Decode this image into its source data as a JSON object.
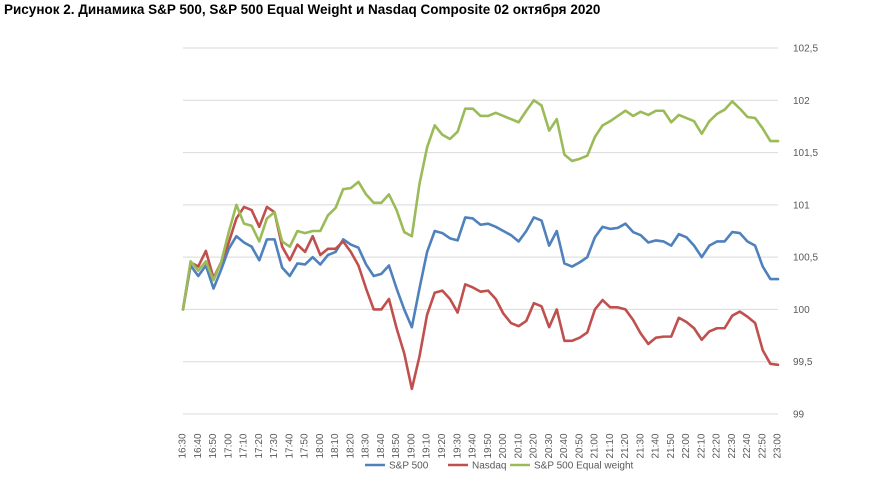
{
  "title": "Рисунок 2. Динамика S&P 500, S&P 500 Equal Weight и Nasdaq Composite 02 октября 2020",
  "chart_data": {
    "type": "line",
    "title": "Рисунок 2. Динамика S&P 500, S&P 500 Equal Weight и Nasdaq Composite 02 октября 2020",
    "xlabel": "",
    "ylabel": "",
    "ylim": [
      99,
      102.5
    ],
    "yticks": [
      "99",
      "99,5",
      "100",
      "100,5",
      "101",
      "101,5",
      "102",
      "102,5"
    ],
    "ytick_values": [
      99,
      99.5,
      100,
      100.5,
      101,
      101.5,
      102,
      102.5
    ],
    "y_axis_side": "right",
    "grid": true,
    "legend_position": "bottom",
    "x": [
      "16:30",
      "16:35",
      "16:40",
      "16:45",
      "16:50",
      "16:55",
      "17:00",
      "17:05",
      "17:10",
      "17:15",
      "17:20",
      "17:25",
      "17:30",
      "17:35",
      "17:40",
      "17:45",
      "17:50",
      "17:55",
      "18:00",
      "18:05",
      "18:10",
      "18:15",
      "18:20",
      "18:25",
      "18:30",
      "18:35",
      "18:40",
      "18:45",
      "18:50",
      "18:55",
      "19:00",
      "19:05",
      "19:10",
      "19:15",
      "19:20",
      "19:25",
      "19:30",
      "19:35",
      "19:40",
      "19:45",
      "19:50",
      "19:55",
      "20:00",
      "20:05",
      "20:10",
      "20:15",
      "20:20",
      "20:25",
      "20:30",
      "20:35",
      "20:40",
      "20:45",
      "20:50",
      "20:55",
      "21:00",
      "21:05",
      "21:10",
      "21:15",
      "21:20",
      "21:25",
      "21:30",
      "21:35",
      "21:40",
      "21:45",
      "21:50",
      "21:55",
      "22:00",
      "22:05",
      "22:10",
      "22:15",
      "22:20",
      "22:25",
      "22:30",
      "22:35",
      "22:40",
      "22:45",
      "22:50",
      "22:55",
      "23:00"
    ],
    "x_tick_labels": [
      "16:30",
      "16:40",
      "16:50",
      "17:00",
      "17:10",
      "17:20",
      "17:30",
      "17:40",
      "17:50",
      "18:00",
      "18:10",
      "18:20",
      "18:30",
      "18:40",
      "18:50",
      "19:00",
      "19:10",
      "19:20",
      "19:30",
      "19:40",
      "19:50",
      "20:00",
      "20:10",
      "20:20",
      "20:30",
      "20:40",
      "20:50",
      "21:00",
      "21:10",
      "21:20",
      "21:30",
      "21:40",
      "21:50",
      "22:00",
      "22:10",
      "22:20",
      "22:30",
      "22:40",
      "22:50",
      "23:00"
    ],
    "series": [
      {
        "name": "S&P 500",
        "color": "#4f81bd",
        "values": [
          100.0,
          100.42,
          100.32,
          100.42,
          100.2,
          100.38,
          100.58,
          100.7,
          100.64,
          100.6,
          100.47,
          100.67,
          100.67,
          100.4,
          100.32,
          100.44,
          100.43,
          100.5,
          100.43,
          100.52,
          100.55,
          100.67,
          100.62,
          100.59,
          100.43,
          100.32,
          100.34,
          100.42,
          100.2,
          100.0,
          99.83,
          100.2,
          100.55,
          100.75,
          100.73,
          100.68,
          100.66,
          100.88,
          100.87,
          100.81,
          100.82,
          100.79,
          100.75,
          100.71,
          100.65,
          100.75,
          100.88,
          100.85,
          100.61,
          100.75,
          100.44,
          100.41,
          100.45,
          100.5,
          100.69,
          100.79,
          100.77,
          100.78,
          100.82,
          100.74,
          100.71,
          100.64,
          100.66,
          100.65,
          100.61,
          100.72,
          100.69,
          100.61,
          100.5,
          100.61,
          100.65,
          100.65,
          100.74,
          100.73,
          100.65,
          100.61,
          100.41,
          100.29,
          100.29
        ]
      },
      {
        "name": "Nasdaq",
        "color": "#c0504d",
        "values": [
          100.0,
          100.45,
          100.41,
          100.56,
          100.3,
          100.45,
          100.64,
          100.87,
          100.98,
          100.95,
          100.79,
          100.98,
          100.93,
          100.6,
          100.47,
          100.62,
          100.55,
          100.7,
          100.52,
          100.58,
          100.58,
          100.65,
          100.55,
          100.42,
          100.2,
          100.0,
          100.0,
          100.1,
          99.82,
          99.58,
          99.24,
          99.55,
          99.95,
          100.16,
          100.18,
          100.1,
          99.97,
          100.24,
          100.21,
          100.17,
          100.18,
          100.1,
          99.96,
          99.87,
          99.84,
          99.89,
          100.06,
          100.03,
          99.83,
          100.0,
          99.7,
          99.7,
          99.73,
          99.78,
          100.0,
          100.09,
          100.02,
          100.02,
          100.0,
          99.9,
          99.77,
          99.67,
          99.73,
          99.74,
          99.74,
          99.92,
          99.88,
          99.82,
          99.71,
          99.79,
          99.82,
          99.82,
          99.94,
          99.98,
          99.93,
          99.87,
          99.61,
          99.48,
          99.47
        ]
      },
      {
        "name": "S&P 500 Equal weight",
        "color": "#9bbb59",
        "values": [
          100.0,
          100.46,
          100.37,
          100.46,
          100.28,
          100.45,
          100.74,
          101.0,
          100.82,
          100.8,
          100.65,
          100.87,
          100.93,
          100.65,
          100.6,
          100.75,
          100.73,
          100.75,
          100.75,
          100.9,
          100.97,
          101.15,
          101.16,
          101.22,
          101.1,
          101.02,
          101.02,
          101.1,
          100.95,
          100.74,
          100.7,
          101.2,
          101.55,
          101.76,
          101.67,
          101.63,
          101.7,
          101.92,
          101.92,
          101.85,
          101.85,
          101.88,
          101.85,
          101.82,
          101.79,
          101.9,
          102.0,
          101.95,
          101.71,
          101.82,
          101.48,
          101.42,
          101.44,
          101.47,
          101.65,
          101.76,
          101.8,
          101.85,
          101.9,
          101.85,
          101.89,
          101.86,
          101.9,
          101.9,
          101.79,
          101.86,
          101.83,
          101.8,
          101.68,
          101.8,
          101.87,
          101.91,
          101.99,
          101.92,
          101.84,
          101.83,
          101.73,
          101.61,
          101.61
        ]
      }
    ]
  }
}
